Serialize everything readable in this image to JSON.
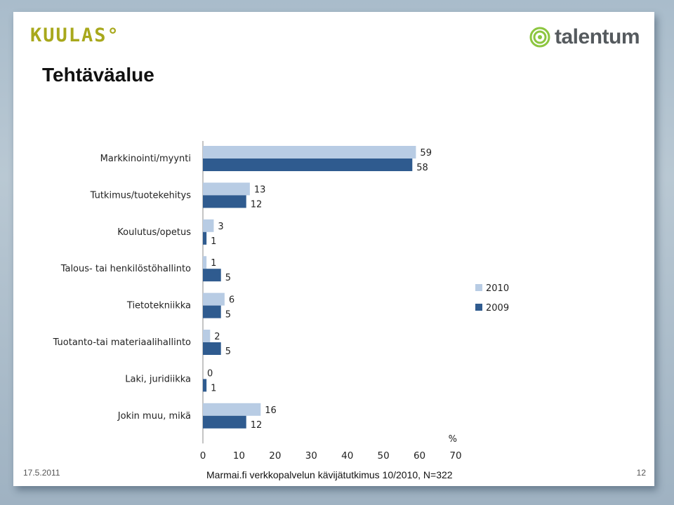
{
  "header": {
    "left_logo_text": "KUULAS°",
    "right_logo_text": "talentum",
    "title": "Tehtäväalue"
  },
  "chart_data": {
    "type": "bar",
    "orientation": "horizontal",
    "categories": [
      "Markkinointi/myynti",
      "Tutkimus/tuotekehitys",
      "Koulutus/opetus",
      "Talous- tai henkilöstöhallinto",
      "Tietotekniikka",
      "Tuotanto-tai materiaalihallinto",
      "Laki, juridiikka",
      "Jokin muu, mikä"
    ],
    "series": [
      {
        "name": "2010",
        "values": [
          59,
          13,
          3,
          1,
          6,
          2,
          0,
          16
        ],
        "color": "#b8cce4"
      },
      {
        "name": "2009",
        "values": [
          58,
          12,
          1,
          5,
          5,
          5,
          1,
          12
        ],
        "color": "#2f5b8f"
      }
    ],
    "x_ticks": [
      0,
      10,
      20,
      30,
      40,
      50,
      60,
      70
    ],
    "xlim": [
      0,
      70
    ],
    "unit_label": "%",
    "legend_position": "right",
    "grid": false
  },
  "footer": {
    "date": "17.5.2011",
    "source": "Marmai.fi verkkopalvelun kävijätutkimus 10/2010, N=322",
    "page": "12"
  }
}
